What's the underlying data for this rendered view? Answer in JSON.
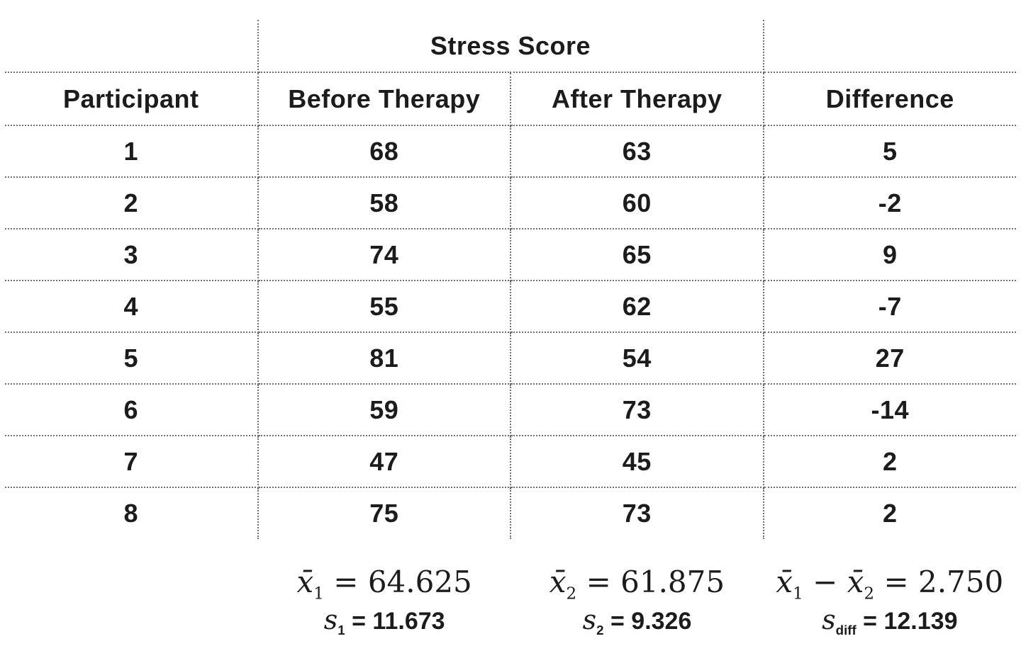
{
  "colors": {
    "background": "#ffffff",
    "text": "#1c1c1c",
    "grid_dotted": "#6f6f6f"
  },
  "chart_data": {
    "type": "table",
    "group_header": "Stress Score",
    "columns": [
      "Participant",
      "Before Therapy",
      "After Therapy",
      "Difference"
    ],
    "rows": [
      [
        "1",
        "68",
        "63",
        "5"
      ],
      [
        "2",
        "58",
        "60",
        "-2"
      ],
      [
        "3",
        "74",
        "65",
        "9"
      ],
      [
        "4",
        "55",
        "62",
        "-7"
      ],
      [
        "5",
        "81",
        "54",
        "27"
      ],
      [
        "6",
        "59",
        "73",
        "-14"
      ],
      [
        "7",
        "47",
        "45",
        "2"
      ],
      [
        "8",
        "75",
        "73",
        "2"
      ]
    ],
    "summary": {
      "before": {
        "mean_var": "x̄",
        "mean_sub": "1",
        "mean_rest": " = 64.625",
        "sd_var": "s",
        "sd_sub": "1",
        "sd_rest": " = 11.673"
      },
      "after": {
        "mean_var": "x̄",
        "mean_sub": "2",
        "mean_rest": " = 61.875",
        "sd_var": "s",
        "sd_sub": "2",
        "sd_rest": " = 9.326"
      },
      "difference": {
        "mean_var1": "x̄",
        "mean_sub1": "1",
        "minus": " − ",
        "mean_var2": "x̄",
        "mean_sub2": "2",
        "mean_rest": " = 2.750",
        "sd_var": "s",
        "sd_sub": "diff",
        "sd_rest": " = 12.139"
      }
    },
    "summary_numeric": {
      "mean_before": 64.625,
      "sd_before": 11.673,
      "mean_after": 61.875,
      "sd_after": 9.326,
      "mean_difference": 2.75,
      "sd_difference": 12.139
    }
  }
}
